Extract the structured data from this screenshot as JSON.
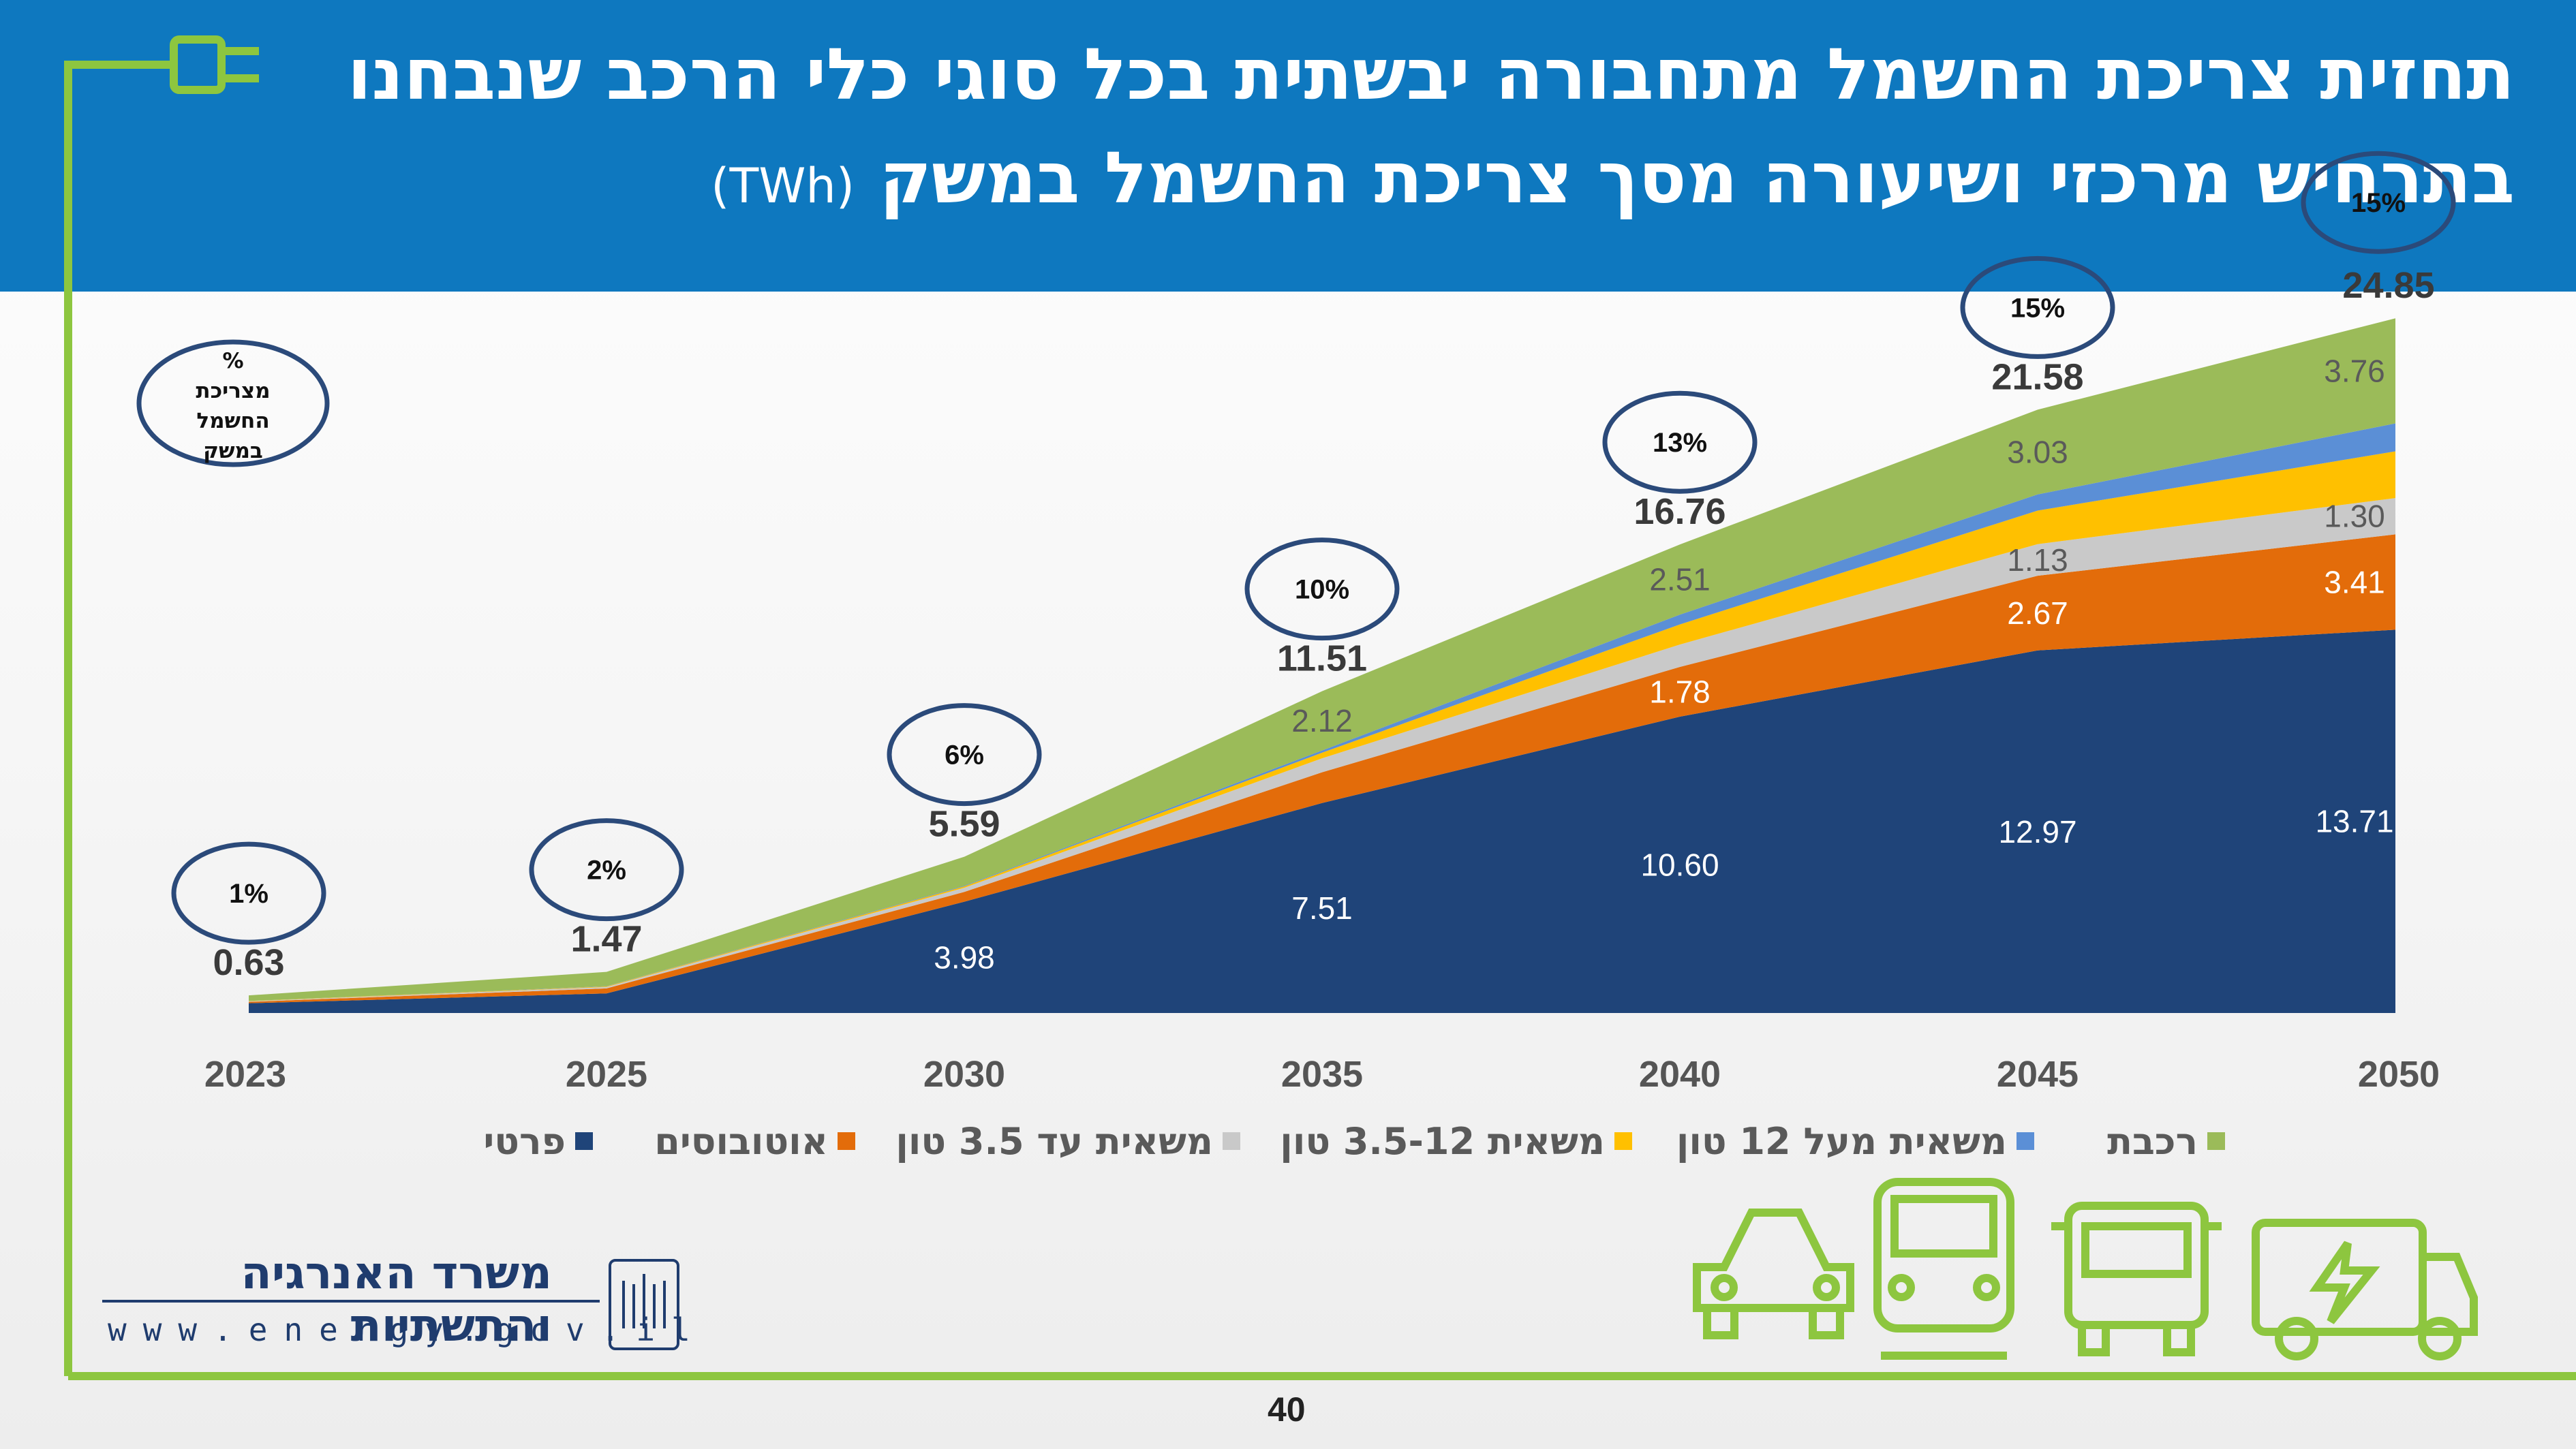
{
  "header": {
    "title_line1": "תחזית צריכת החשמל מתחבורה יבשתית בכל סוגי כלי הרכב שנבחנו",
    "title_line2": "בתרחיש מרכזי ושיעורה מסך צריכת החשמל במשק",
    "title_unit": "(TWh)"
  },
  "percent_legend_label": [
    "%",
    "מצריכת",
    "החשמל",
    "במשק"
  ],
  "footer": {
    "ministry_name": "משרד האנרגיה והתשתיות",
    "url": "www.energy.gov.il",
    "page_number": "40"
  },
  "colors": {
    "header_bg": "#0e78bf",
    "accent_green": "#8dc63f",
    "circle_stroke": "#2b4a7a"
  },
  "chart_data": {
    "type": "area",
    "stacked": true,
    "x": [
      "2023",
      "2025",
      "2030",
      "2035",
      "2040",
      "2045",
      "2050"
    ],
    "series": [
      {
        "name": "פרטי",
        "color": "#1f4479",
        "values": [
          0.35,
          0.7,
          3.98,
          7.51,
          10.6,
          12.97,
          13.71
        ],
        "labels": [
          "",
          "",
          "3.98",
          "7.51",
          "10.60",
          "12.97",
          "13.71"
        ]
      },
      {
        "name": "אוטובוסים",
        "color": "#e36c0a",
        "values": [
          0.05,
          0.18,
          0.35,
          1.1,
          1.78,
          2.67,
          3.41
        ],
        "labels": [
          "",
          "",
          "",
          "",
          "1.78",
          "2.67",
          "3.41"
        ]
      },
      {
        "name": "משאית עד 3.5 טון",
        "color": "#c9c9c9",
        "values": [
          0.02,
          0.05,
          0.15,
          0.5,
          0.8,
          1.13,
          1.3
        ],
        "labels": [
          "",
          "",
          "",
          "",
          "",
          "1.13",
          "1.30"
        ]
      },
      {
        "name": "משאית 3.5-12 טון",
        "color": "#ffc000",
        "values": [
          0.01,
          0.02,
          0.05,
          0.2,
          0.72,
          1.2,
          1.67
        ],
        "labels": [
          "",
          "",
          "",
          "",
          "",
          "",
          ""
        ]
      },
      {
        "name": "משאית מעל 12 טון",
        "color": "#5b8fd6",
        "values": [
          0.0,
          0.01,
          0.02,
          0.08,
          0.35,
          0.58,
          1.0
        ],
        "labels": [
          "",
          "",
          "",
          "",
          "",
          "",
          ""
        ]
      },
      {
        "name": "רכבת",
        "color": "#9bbb59",
        "values": [
          0.2,
          0.51,
          1.04,
          2.12,
          2.51,
          3.03,
          3.76
        ],
        "labels": [
          "",
          "",
          "",
          "2.12",
          "2.51",
          "3.03",
          "3.76"
        ]
      }
    ],
    "totals": [
      "0.63",
      "1.47",
      "5.59",
      "11.51",
      "16.76",
      "21.58",
      "24.85"
    ],
    "percent_of_national": [
      "1%",
      "2%",
      "6%",
      "10%",
      "13%",
      "15%",
      "15%"
    ],
    "ylim": [
      0,
      26
    ],
    "legend_position": "bottom"
  }
}
